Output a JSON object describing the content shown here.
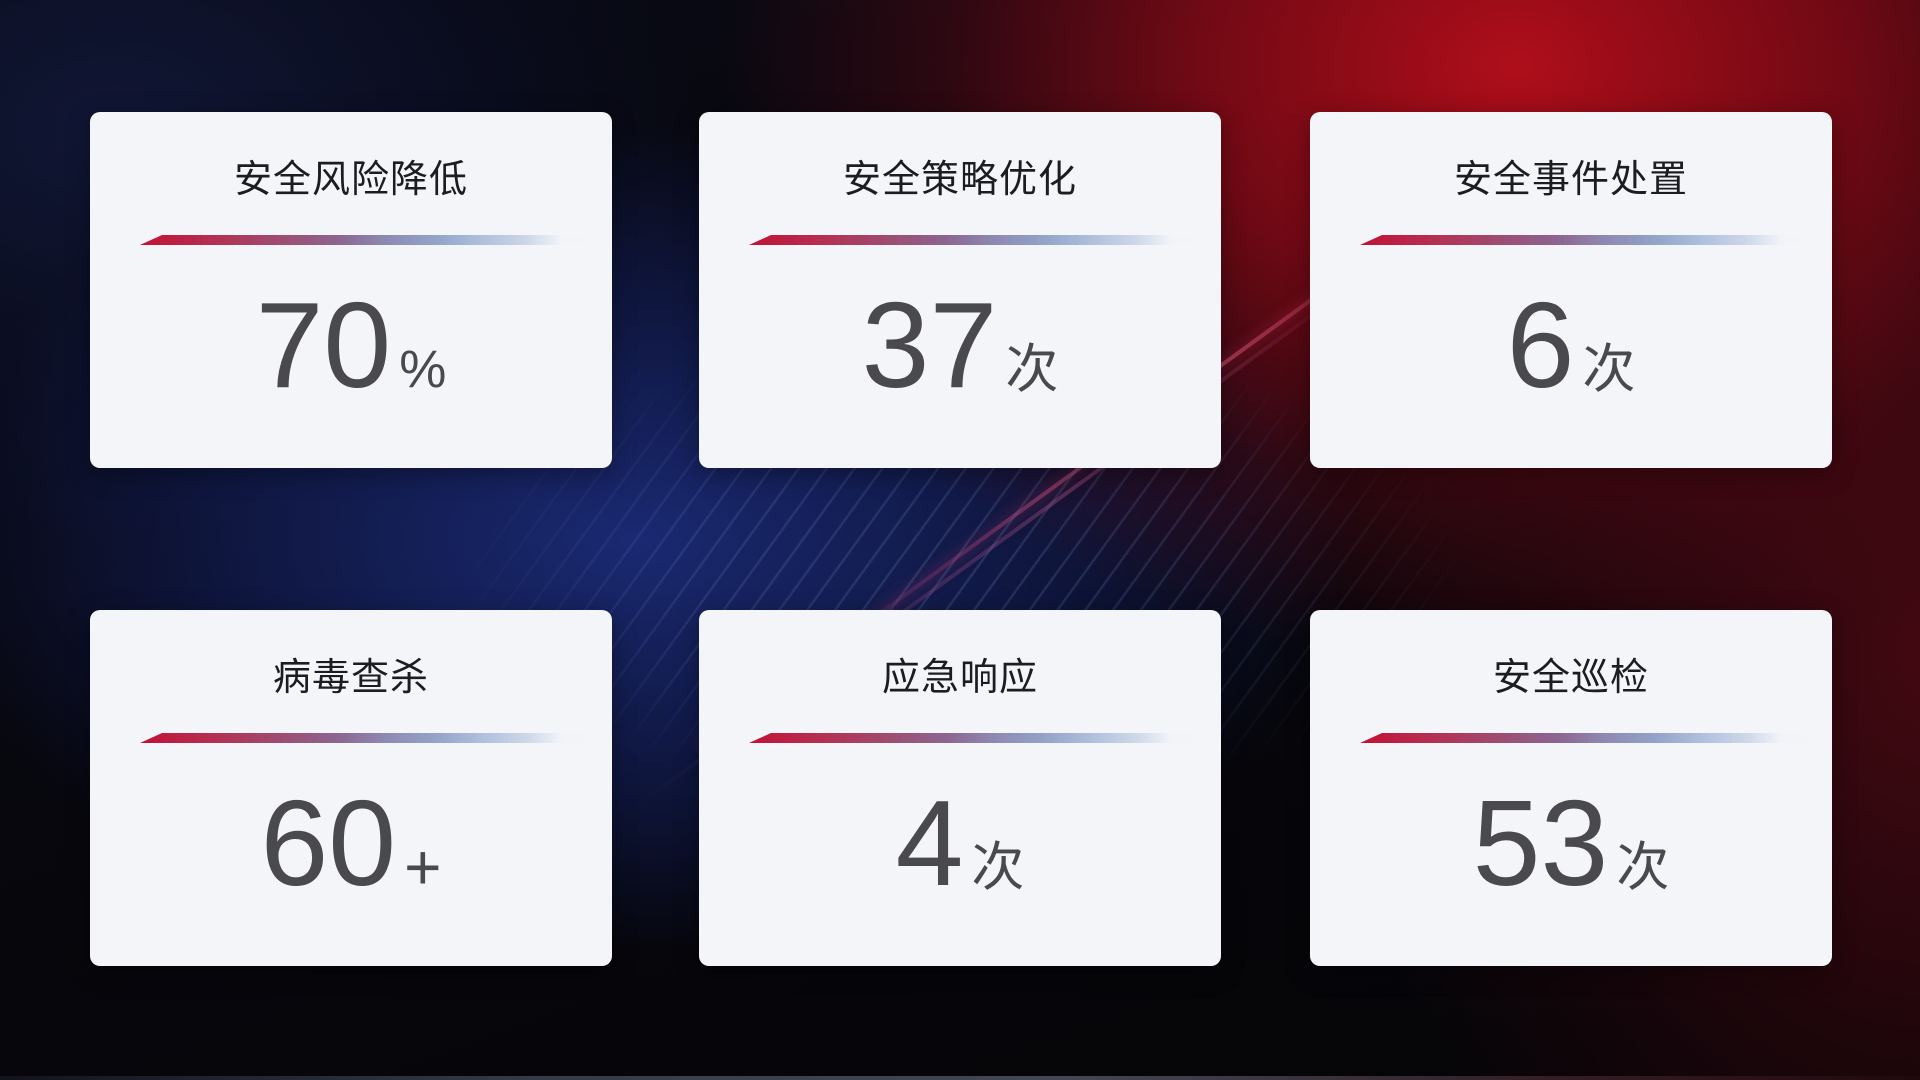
{
  "cards": [
    {
      "title": "安全风险降低",
      "value": "70",
      "unit": "%"
    },
    {
      "title": "安全策略优化",
      "value": "37",
      "unit": "次"
    },
    {
      "title": "安全事件处置",
      "value": "6",
      "unit": "次"
    },
    {
      "title": "病毒查杀",
      "value": "60",
      "unit": "+"
    },
    {
      "title": "应急响应",
      "value": "4",
      "unit": "次"
    },
    {
      "title": "安全巡检",
      "value": "53",
      "unit": "次"
    }
  ],
  "colors": {
    "card_background": "#f4f5f8",
    "title_text": "#1d1d21",
    "value_text": "#4a4a4e",
    "divider_start": "#c21135",
    "divider_middle": "#8e87b0",
    "divider_end": "#ccd6e8",
    "background_red_glow": "#a00e18",
    "background_blue_glow": "#1c2d7d",
    "background_base": "#06060c"
  }
}
